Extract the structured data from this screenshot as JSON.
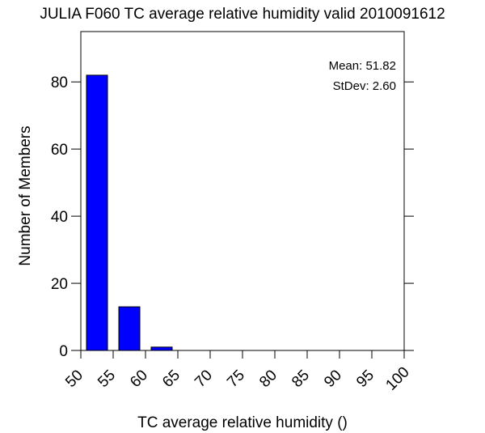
{
  "chart_data": {
    "type": "bar",
    "title": "JULIA F060 TC average relative humidity valid 2010091612",
    "xlabel": "TC average relative humidity ()",
    "ylabel": "Number of Members",
    "bins": [
      {
        "start": 50,
        "end": 55,
        "count": 82
      },
      {
        "start": 55,
        "end": 60,
        "count": 13
      },
      {
        "start": 60,
        "end": 65,
        "count": 1
      },
      {
        "start": 65,
        "end": 70,
        "count": 0
      },
      {
        "start": 70,
        "end": 75,
        "count": 0
      },
      {
        "start": 75,
        "end": 80,
        "count": 0
      },
      {
        "start": 80,
        "end": 85,
        "count": 0
      },
      {
        "start": 85,
        "end": 90,
        "count": 0
      },
      {
        "start": 90,
        "end": 95,
        "count": 0
      },
      {
        "start": 95,
        "end": 100,
        "count": 0
      }
    ],
    "xlim": [
      50,
      100
    ],
    "ylim": [
      0,
      95
    ],
    "x_ticks": [
      "50",
      "55",
      "60",
      "65",
      "70",
      "75",
      "80",
      "85",
      "90",
      "95",
      "100"
    ],
    "y_ticks": [
      "0",
      "20",
      "40",
      "60",
      "80"
    ],
    "mean_label": "Mean: 51.82",
    "stdev_label": "StDev: 2.60",
    "bar_color": "#0000ff",
    "grid": false
  }
}
